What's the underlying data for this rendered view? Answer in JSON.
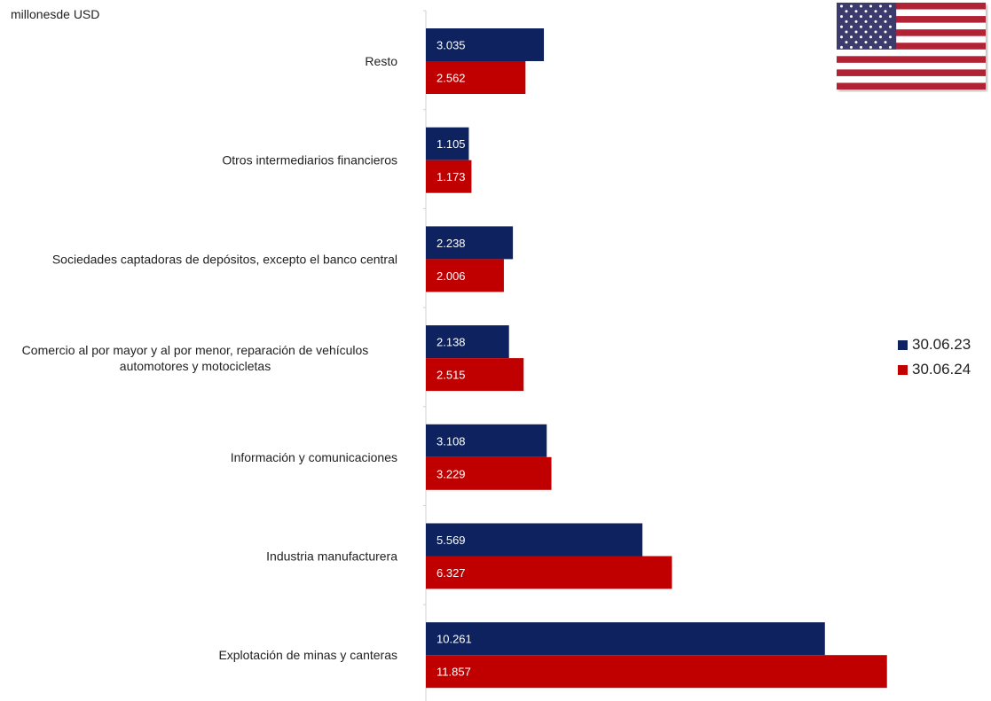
{
  "unit_label": "millonesde USD",
  "colors": {
    "series_2023": "#0d225e",
    "series_2024": "#c00000",
    "axis": "#d0d0d0"
  },
  "flag": {
    "icon": "us-flag-icon",
    "stripe_red": "#b22234",
    "canton_blue": "#3c3b6e"
  },
  "chart_data": {
    "type": "bar",
    "orientation": "horizontal",
    "categories": [
      "Resto",
      "Otros intermediarios financieros",
      "Sociedades captadoras de depósitos, excepto el banco central",
      "Comercio al por mayor y al por menor, reparación de vehículos automotores y motocicletas",
      "Información y comunicaciones",
      "Industria manufacturera",
      "Explotación de minas y canteras"
    ],
    "category_lines": [
      [
        "Resto"
      ],
      [
        "Otros intermediarios financieros"
      ],
      [
        "Sociedades captadoras de depósitos, excepto el banco central"
      ],
      [
        "Comercio al por mayor y al por menor, reparación de vehículos",
        "automotores y motocicletas"
      ],
      [
        "Información y comunicaciones"
      ],
      [
        "Industria manufacturera"
      ],
      [
        "Explotación de minas y canteras"
      ]
    ],
    "series": [
      {
        "name": "30.06.23",
        "values": [
          3035,
          1105,
          2238,
          2138,
          3108,
          5569,
          10261
        ],
        "labels": [
          "3.035",
          "1.105",
          "2.238",
          "2.138",
          "3.108",
          "5.569",
          "10.261"
        ]
      },
      {
        "name": "30.06.24",
        "values": [
          2562,
          1173,
          2006,
          2515,
          3229,
          6327,
          11857
        ],
        "labels": [
          "2.562",
          "1.173",
          "2.006",
          "2.515",
          "3.229",
          "6.327",
          "11.857"
        ]
      }
    ],
    "xlim": [
      0,
      12000
    ],
    "legend_position": "right",
    "grid": false
  }
}
